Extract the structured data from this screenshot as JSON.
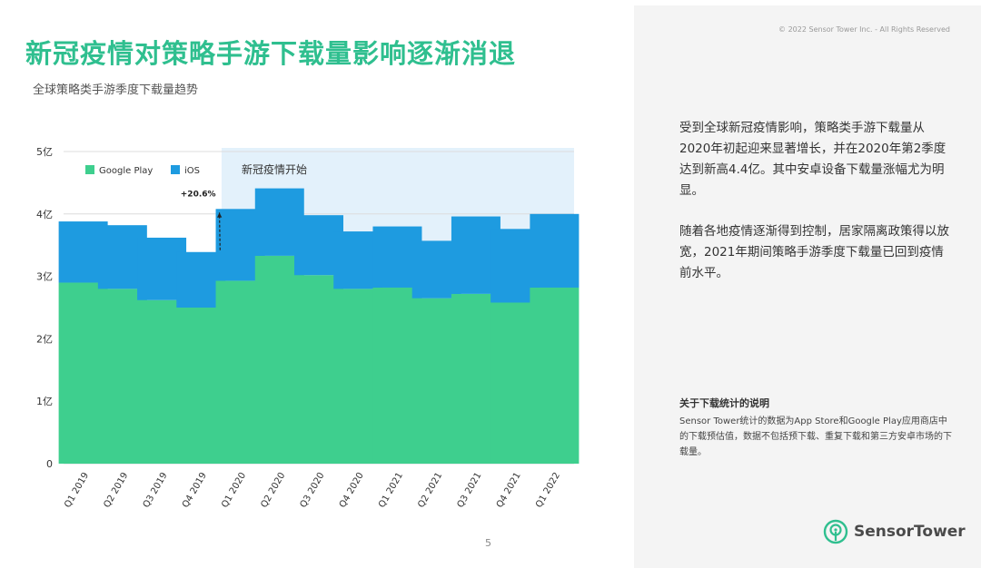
{
  "header": {
    "title": "新冠疫情对策略手游下载量影响逐渐消退",
    "subtitle": "全球策略类手游季度下载量趋势"
  },
  "page_number": "5",
  "panel": {
    "copyright": "© 2022 Sensor Tower Inc. - All Rights Reserved",
    "paragraph1": "受到全球新冠疫情影响，策略类手游下载量从2020年初起迎来显著增长，并在2020年第2季度达到新高4.4亿。其中安卓设备下载量涨幅尤为明显。",
    "paragraph2": "随着各地疫情逐渐得到控制，居家隔离政策得以放宽，2021年期间策略手游季度下载量已回到疫情前水平。",
    "note_title": "关于下载统计的说明",
    "note_text": "Sensor Tower统计的数据为App Store和Google Play应用商店中的下载预估值，数据不包括预下载、重复下载和第三方安卓市场的下载量。",
    "logo_text": "SensorTower",
    "logo_icon": "sensor-tower-logo-icon"
  },
  "chart_data": {
    "type": "bar",
    "stacked": true,
    "categories": [
      "Q1 2019",
      "Q2 2019",
      "Q3 2019",
      "Q4 2019",
      "Q1 2020",
      "Q2 2020",
      "Q3 2020",
      "Q4 2020",
      "Q1 2021",
      "Q2 2021",
      "Q3 2021",
      "Q4 2021",
      "Q1 2022"
    ],
    "series": [
      {
        "name": "Google Play",
        "color": "#3ecf8e",
        "values": [
          2.9,
          2.8,
          2.62,
          2.5,
          2.93,
          3.33,
          3.02,
          2.8,
          2.82,
          2.65,
          2.72,
          2.58,
          2.82
        ]
      },
      {
        "name": "iOS",
        "color": "#1e9be0",
        "values": [
          0.98,
          1.02,
          1.0,
          0.89,
          1.15,
          1.08,
          0.96,
          0.92,
          0.98,
          0.92,
          1.24,
          1.18,
          1.18
        ]
      }
    ],
    "y_ticks": [
      "0",
      "1亿",
      "2亿",
      "3亿",
      "4亿",
      "5亿"
    ],
    "ylim": [
      0,
      5
    ],
    "grid": true,
    "legend_position": "top-left",
    "annotations": {
      "highlight_label": "新冠疫情开始",
      "highlight_start_category": "Q1 2020",
      "highlight_color": "#e3f1fb",
      "growth_label": "+20.6%",
      "growth_from": "Q4 2019",
      "growth_to": "Q1 2020"
    },
    "watermark": "SensorTower"
  }
}
